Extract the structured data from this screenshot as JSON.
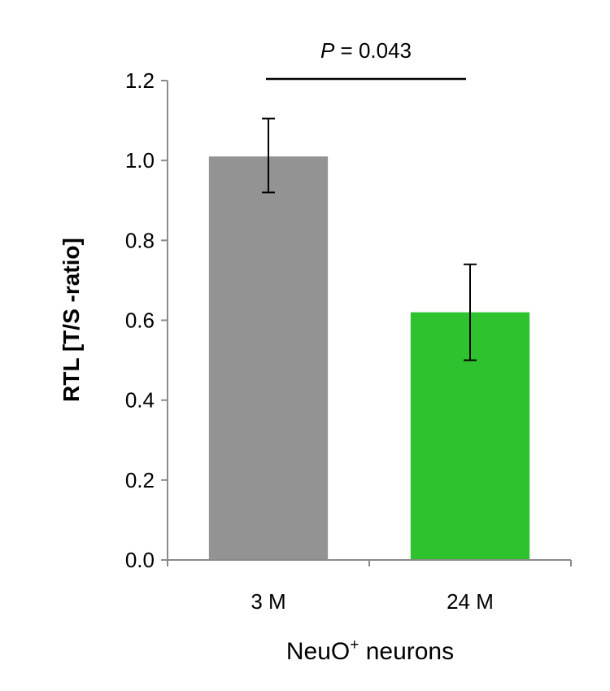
{
  "chart_data": {
    "type": "bar",
    "categories": [
      "3 M",
      "24 M"
    ],
    "values": [
      1.01,
      0.62
    ],
    "error_low": [
      0.92,
      0.5
    ],
    "error_high": [
      1.105,
      0.74
    ],
    "colors": [
      "#939393",
      "#2fc22f"
    ],
    "ylabel": "RTL [T/S -ratio]",
    "xlabel": {
      "base": "NeuO",
      "superscript": "+",
      "rest": " neurons"
    },
    "ylim": [
      0,
      1.2
    ],
    "yticks": [
      "0.0",
      "0.2",
      "0.4",
      "0.6",
      "0.8",
      "1.0",
      "1.2"
    ],
    "grid": false,
    "legend": "none",
    "significance": {
      "prefix": "P",
      "text": " = 0.043"
    }
  }
}
